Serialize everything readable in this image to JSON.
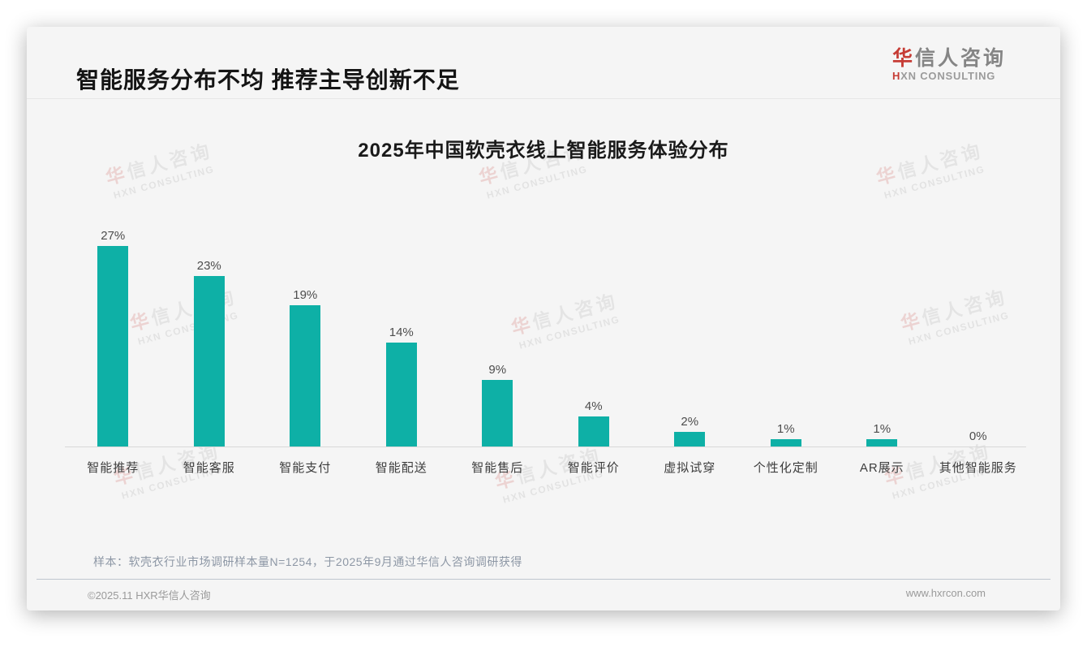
{
  "page": {
    "title": "智能服务分布不均 推荐主导创新不足"
  },
  "logo": {
    "accent_char": "华",
    "name_rest": "信人咨询",
    "subtitle_accent": "H",
    "subtitle_rest": "XN CONSULTING",
    "accent_color": "#C63C35"
  },
  "watermark": {
    "accent_char": "华",
    "name_rest": "信人咨询",
    "subtitle": "HXN CONSULTING"
  },
  "chart_data": {
    "type": "bar",
    "title": "2025年中国软壳衣线上智能服务体验分布",
    "categories": [
      "智能推荐",
      "智能客服",
      "智能支付",
      "智能配送",
      "智能售后",
      "智能评价",
      "虚拟试穿",
      "个性化定制",
      "AR展示",
      "其他智能服务"
    ],
    "values": [
      27,
      23,
      19,
      14,
      9,
      4,
      2,
      1,
      1,
      0
    ],
    "value_labels": [
      "27%",
      "23%",
      "19%",
      "14%",
      "9%",
      "4%",
      "2%",
      "1%",
      "1%",
      "0%"
    ],
    "unit": "%",
    "xlabel": "",
    "ylabel": "",
    "ylim": [
      0,
      30
    ],
    "grid": false,
    "legend_position": "none",
    "bar_color": "#0EB0A6"
  },
  "footnote": "样本：软壳衣行业市场调研样本量N=1254，于2025年9月通过华信人咨询调研获得",
  "footer": {
    "copyright": "©2025.11 HXR华信人咨询",
    "website": "www.hxrcon.com"
  }
}
